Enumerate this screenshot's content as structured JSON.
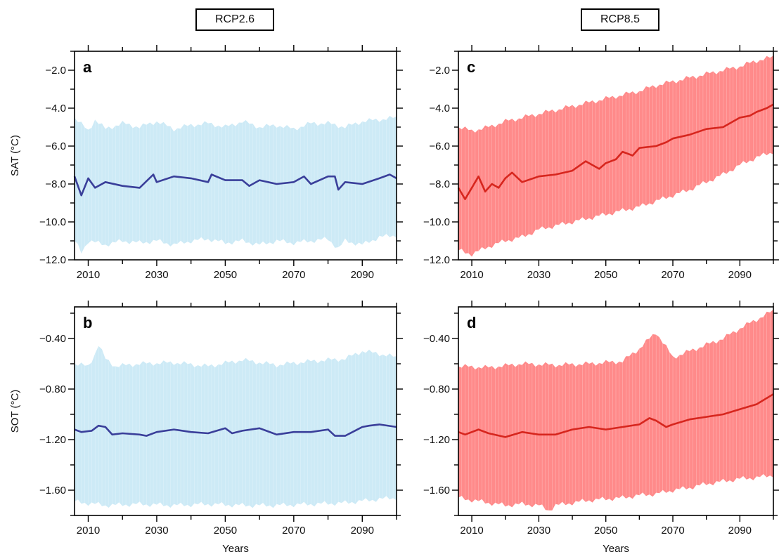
{
  "scenario_labels": {
    "left": "RCP2.6",
    "right": "RCP8.5"
  },
  "chart_data": [
    {
      "id": "a",
      "panel_letter": "a",
      "type": "line",
      "scenario": "RCP2.6",
      "ylabel": "SAT (°C)",
      "xlabel": "",
      "xlim": [
        2006,
        2100
      ],
      "ylim": [
        -12,
        -1
      ],
      "xticks": [
        2010,
        2030,
        2050,
        2070,
        2090
      ],
      "yticks": [
        -2.0,
        -4.0,
        -6.0,
        -8.0,
        -10.0,
        -12.0
      ],
      "ytick_labels": [
        "−2.0",
        "−4.0",
        "−6.0",
        "−8.0",
        "−10.0",
        "−12.0"
      ],
      "line_color": "#3a3f9a",
      "band_color": "#cdeaf6",
      "series": [
        {
          "role": "mean",
          "x": [
            2006,
            2008,
            2010,
            2012,
            2015,
            2020,
            2025,
            2029,
            2030,
            2035,
            2040,
            2045,
            2046,
            2050,
            2055,
            2057,
            2060,
            2065,
            2070,
            2073,
            2075,
            2080,
            2082,
            2083,
            2085,
            2090,
            2095,
            2098,
            2100
          ],
          "y": [
            -7.6,
            -8.6,
            -7.7,
            -8.2,
            -7.9,
            -8.1,
            -8.2,
            -7.5,
            -7.9,
            -7.6,
            -7.7,
            -7.9,
            -7.5,
            -7.8,
            -7.8,
            -8.1,
            -7.8,
            -8.0,
            -7.9,
            -7.6,
            -8.0,
            -7.6,
            -7.6,
            -8.3,
            -7.9,
            -8.0,
            -7.7,
            -7.5,
            -7.7
          ]
        },
        {
          "role": "upper",
          "x": [
            2006,
            2010,
            2012,
            2015,
            2020,
            2025,
            2030,
            2035,
            2040,
            2045,
            2050,
            2055,
            2060,
            2065,
            2070,
            2075,
            2080,
            2085,
            2090,
            2095,
            2100
          ],
          "y": [
            -4.5,
            -5.2,
            -4.6,
            -5.1,
            -4.8,
            -5.0,
            -4.7,
            -5.1,
            -4.9,
            -4.8,
            -5.0,
            -4.7,
            -5.0,
            -4.9,
            -5.1,
            -4.8,
            -4.8,
            -5.0,
            -4.7,
            -4.6,
            -4.5
          ]
        },
        {
          "role": "lower",
          "x": [
            2006,
            2008,
            2010,
            2015,
            2020,
            2025,
            2030,
            2035,
            2040,
            2045,
            2050,
            2055,
            2060,
            2065,
            2070,
            2075,
            2080,
            2083,
            2085,
            2090,
            2095,
            2100
          ],
          "y": [
            -11.0,
            -11.6,
            -11.0,
            -11.2,
            -11.0,
            -11.1,
            -11.0,
            -11.2,
            -11.0,
            -10.9,
            -11.1,
            -11.0,
            -11.2,
            -11.0,
            -11.1,
            -11.0,
            -10.9,
            -11.4,
            -11.0,
            -11.2,
            -10.8,
            -10.7
          ]
        }
      ]
    },
    {
      "id": "b",
      "panel_letter": "b",
      "type": "line",
      "scenario": "RCP2.6",
      "ylabel": "SOT (°C)",
      "xlabel": "Years",
      "xlim": [
        2006,
        2100
      ],
      "ylim": [
        -1.8,
        -0.15
      ],
      "xticks": [
        2010,
        2030,
        2050,
        2070,
        2090
      ],
      "yticks": [
        -0.4,
        -0.8,
        -1.2,
        -1.6
      ],
      "ytick_labels": [
        "−0.40",
        "−0.80",
        "−1.20",
        "−1.60"
      ],
      "line_color": "#3a3f9a",
      "band_color": "#cdeaf6",
      "series": [
        {
          "role": "mean",
          "x": [
            2006,
            2008,
            2011,
            2013,
            2015,
            2017,
            2020,
            2025,
            2027,
            2030,
            2035,
            2040,
            2045,
            2050,
            2052,
            2055,
            2060,
            2065,
            2070,
            2075,
            2080,
            2082,
            2085,
            2090,
            2092,
            2095,
            2100
          ],
          "y": [
            -1.12,
            -1.14,
            -1.13,
            -1.09,
            -1.1,
            -1.16,
            -1.15,
            -1.16,
            -1.17,
            -1.14,
            -1.12,
            -1.14,
            -1.15,
            -1.11,
            -1.15,
            -1.13,
            -1.11,
            -1.16,
            -1.14,
            -1.14,
            -1.12,
            -1.17,
            -1.17,
            -1.1,
            -1.09,
            -1.08,
            -1.1
          ]
        },
        {
          "role": "upper",
          "x": [
            2006,
            2010,
            2012,
            2013,
            2015,
            2018,
            2025,
            2035,
            2045,
            2055,
            2065,
            2075,
            2085,
            2090,
            2095,
            2100
          ],
          "y": [
            -0.6,
            -0.62,
            -0.52,
            -0.45,
            -0.56,
            -0.62,
            -0.6,
            -0.59,
            -0.62,
            -0.57,
            -0.61,
            -0.58,
            -0.56,
            -0.5,
            -0.52,
            -0.55
          ]
        },
        {
          "role": "lower",
          "x": [
            2006,
            2015,
            2025,
            2035,
            2045,
            2055,
            2065,
            2075,
            2085,
            2095,
            2100
          ],
          "y": [
            -1.69,
            -1.72,
            -1.71,
            -1.72,
            -1.71,
            -1.72,
            -1.72,
            -1.71,
            -1.7,
            -1.67,
            -1.66
          ]
        }
      ]
    },
    {
      "id": "c",
      "panel_letter": "c",
      "type": "line",
      "scenario": "RCP8.5",
      "ylabel": "",
      "xlabel": "",
      "xlim": [
        2006,
        2100
      ],
      "ylim": [
        -12,
        -1
      ],
      "xticks": [
        2010,
        2030,
        2050,
        2070,
        2090
      ],
      "yticks": [
        -2.0,
        -4.0,
        -6.0,
        -8.0,
        -10.0,
        -12.0
      ],
      "ytick_labels": [
        "−2.0",
        "−4.0",
        "−6.0",
        "−8.0",
        "−10.0",
        "−12.0"
      ],
      "line_color": "#d7261e",
      "band_color": "#ff8a8a",
      "series": [
        {
          "role": "mean",
          "x": [
            2006,
            2008,
            2010,
            2012,
            2014,
            2016,
            2018,
            2020,
            2022,
            2025,
            2030,
            2035,
            2040,
            2044,
            2048,
            2050,
            2053,
            2055,
            2058,
            2060,
            2065,
            2068,
            2070,
            2075,
            2080,
            2085,
            2088,
            2090,
            2093,
            2095,
            2098,
            2100
          ],
          "y": [
            -8.2,
            -8.8,
            -8.2,
            -7.6,
            -8.4,
            -8.0,
            -8.2,
            -7.7,
            -7.4,
            -7.9,
            -7.6,
            -7.5,
            -7.3,
            -6.8,
            -7.2,
            -6.9,
            -6.7,
            -6.3,
            -6.5,
            -6.1,
            -6.0,
            -5.8,
            -5.6,
            -5.4,
            -5.1,
            -5.0,
            -4.7,
            -4.5,
            -4.4,
            -4.2,
            -4.0,
            -3.8
          ]
        },
        {
          "role": "upper",
          "x": [
            2006,
            2010,
            2015,
            2020,
            2025,
            2030,
            2035,
            2040,
            2045,
            2050,
            2055,
            2060,
            2065,
            2070,
            2075,
            2080,
            2085,
            2090,
            2095,
            2100
          ],
          "y": [
            -5.0,
            -5.2,
            -5.0,
            -4.7,
            -4.5,
            -4.3,
            -4.1,
            -3.9,
            -3.7,
            -3.5,
            -3.3,
            -3.1,
            -2.8,
            -2.6,
            -2.4,
            -2.2,
            -2.0,
            -1.8,
            -1.5,
            -1.3
          ]
        },
        {
          "role": "lower",
          "x": [
            2006,
            2010,
            2015,
            2020,
            2025,
            2030,
            2035,
            2040,
            2045,
            2050,
            2055,
            2060,
            2065,
            2070,
            2075,
            2080,
            2085,
            2090,
            2095,
            2100
          ],
          "y": [
            -11.5,
            -11.7,
            -11.3,
            -11.0,
            -10.8,
            -10.4,
            -10.2,
            -10.0,
            -9.8,
            -9.6,
            -9.4,
            -9.2,
            -8.9,
            -8.6,
            -8.3,
            -7.9,
            -7.5,
            -7.0,
            -6.6,
            -6.3
          ]
        }
      ]
    },
    {
      "id": "d",
      "panel_letter": "d",
      "type": "line",
      "scenario": "RCP8.5",
      "ylabel": "",
      "xlabel": "Years",
      "xlim": [
        2006,
        2100
      ],
      "ylim": [
        -1.8,
        -0.15
      ],
      "xticks": [
        2010,
        2030,
        2050,
        2070,
        2090
      ],
      "yticks": [
        -0.4,
        -0.8,
        -1.2,
        -1.6
      ],
      "ytick_labels": [
        "−0.40",
        "−0.80",
        "−1.20",
        "−1.60"
      ],
      "line_color": "#d7261e",
      "band_color": "#ff8a8a",
      "series": [
        {
          "role": "mean",
          "x": [
            2006,
            2008,
            2012,
            2015,
            2020,
            2025,
            2030,
            2035,
            2040,
            2045,
            2050,
            2055,
            2060,
            2063,
            2065,
            2068,
            2070,
            2075,
            2080,
            2085,
            2090,
            2095,
            2100
          ],
          "y": [
            -1.14,
            -1.16,
            -1.12,
            -1.15,
            -1.18,
            -1.14,
            -1.16,
            -1.16,
            -1.12,
            -1.1,
            -1.12,
            -1.1,
            -1.08,
            -1.03,
            -1.05,
            -1.1,
            -1.08,
            -1.04,
            -1.02,
            -1.0,
            -0.96,
            -0.92,
            -0.84
          ]
        },
        {
          "role": "upper",
          "x": [
            2006,
            2015,
            2025,
            2035,
            2045,
            2055,
            2060,
            2065,
            2070,
            2075,
            2080,
            2085,
            2090,
            2095,
            2100
          ],
          "y": [
            -0.62,
            -0.63,
            -0.6,
            -0.61,
            -0.6,
            -0.58,
            -0.48,
            -0.35,
            -0.55,
            -0.5,
            -0.45,
            -0.4,
            -0.32,
            -0.25,
            -0.18
          ]
        },
        {
          "role": "lower",
          "x": [
            2006,
            2015,
            2020,
            2025,
            2030,
            2033,
            2035,
            2040,
            2045,
            2050,
            2055,
            2060,
            2065,
            2070,
            2075,
            2080,
            2085,
            2090,
            2095,
            2100
          ],
          "y": [
            -1.66,
            -1.7,
            -1.72,
            -1.71,
            -1.72,
            -1.76,
            -1.72,
            -1.7,
            -1.68,
            -1.67,
            -1.66,
            -1.64,
            -1.63,
            -1.6,
            -1.58,
            -1.55,
            -1.53,
            -1.51,
            -1.5,
            -1.48
          ]
        }
      ]
    }
  ]
}
